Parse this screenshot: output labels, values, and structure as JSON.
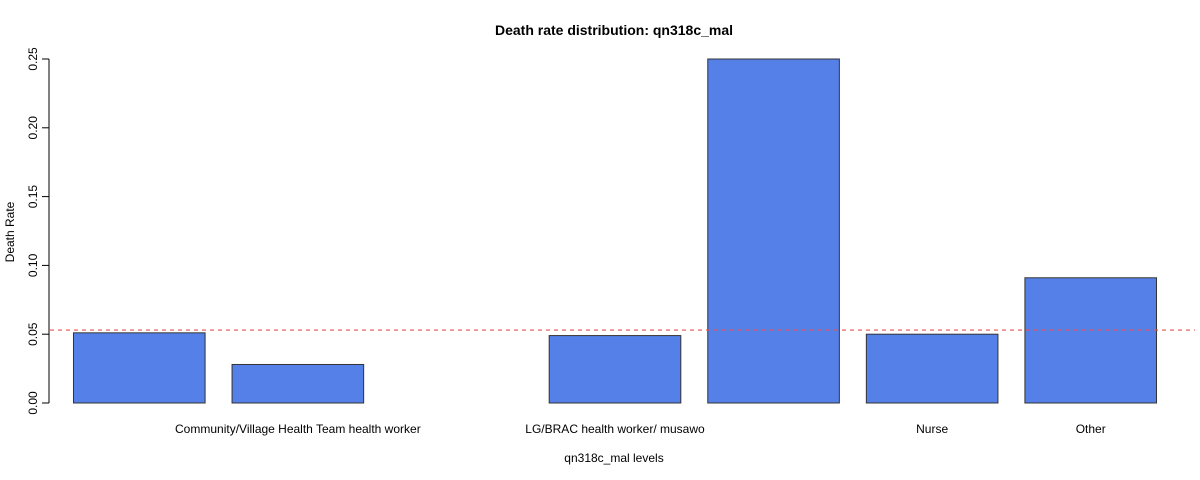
{
  "chart_data": {
    "type": "bar",
    "title": "Death rate distribution: qn318c_mal",
    "xlabel": "qn318c_mal levels",
    "ylabel": "Death Rate",
    "ylim": [
      0,
      0.25
    ],
    "yticks": [
      "0.00",
      "0.05",
      "0.10",
      "0.15",
      "0.20",
      "0.25"
    ],
    "categories": [
      "",
      "Community/Village Health Team health worker",
      "",
      "LG/BRAC health worker/ musawo",
      "",
      "Nurse",
      "Other"
    ],
    "values": [
      0.051,
      0.028,
      0.0,
      0.049,
      0.25,
      0.05,
      0.091
    ],
    "reference_line": {
      "value": 0.053,
      "style": "dashed"
    },
    "bar_color": "#5580E8",
    "bar_border_color": "#333333",
    "reference_line_color": "#E8514F",
    "grid": false
  }
}
